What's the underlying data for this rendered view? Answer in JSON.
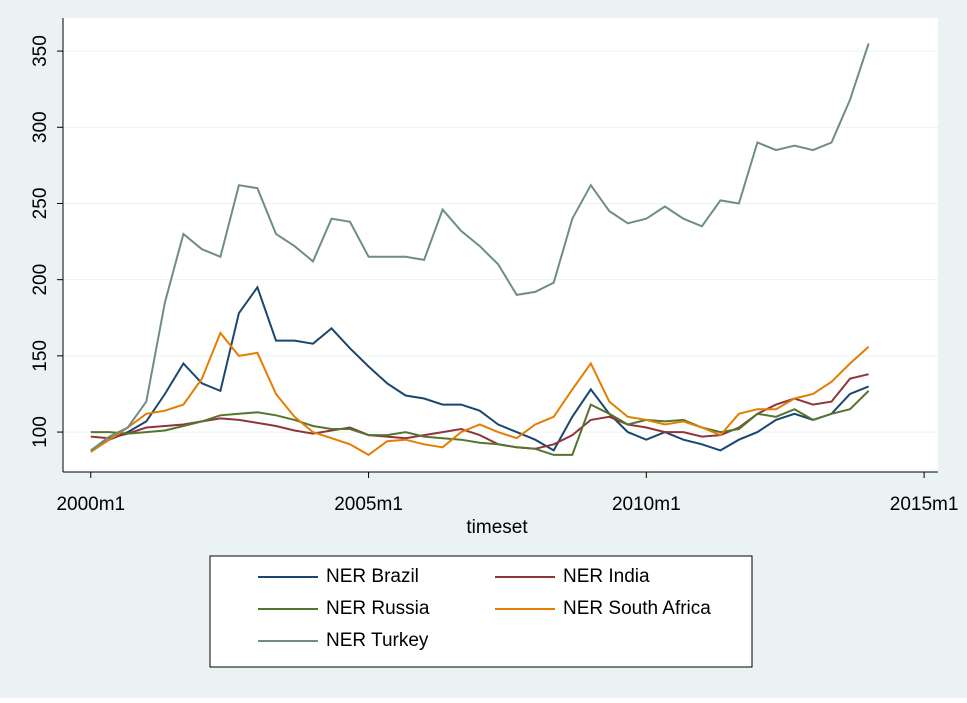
{
  "chart_data": {
    "type": "line",
    "x_label": "timeset",
    "x": [
      "2000m1",
      "2000m5",
      "2000m9",
      "2001m1",
      "2001m5",
      "2001m9",
      "2002m1",
      "2002m5",
      "2002m9",
      "2003m1",
      "2003m5",
      "2003m9",
      "2004m1",
      "2004m5",
      "2004m9",
      "2005m1",
      "2005m5",
      "2005m9",
      "2006m1",
      "2006m5",
      "2006m9",
      "2007m1",
      "2007m5",
      "2007m9",
      "2008m1",
      "2008m5",
      "2008m9",
      "2009m1",
      "2009m5",
      "2009m9",
      "2010m1",
      "2010m5",
      "2010m9",
      "2011m1",
      "2011m5",
      "2011m9",
      "2012m1",
      "2012m5",
      "2012m9",
      "2013m1",
      "2013m5",
      "2013m9",
      "2014m1"
    ],
    "series": [
      {
        "name": "NER Brazil",
        "color": "#1a476f",
        "values": [
          88,
          95,
          100,
          107,
          125,
          145,
          132,
          127,
          178,
          195,
          160,
          160,
          158,
          168,
          155,
          143,
          132,
          124,
          122,
          118,
          118,
          114,
          105,
          100,
          95,
          88,
          110,
          128,
          112,
          100,
          95,
          100,
          95,
          92,
          88,
          95,
          100,
          108,
          112,
          108,
          112,
          125,
          130
        ]
      },
      {
        "name": "NER India",
        "color": "#90353b",
        "values": [
          97,
          96,
          99,
          103,
          104,
          105,
          107,
          109,
          108,
          106,
          104,
          101,
          99,
          101,
          103,
          98,
          97,
          96,
          98,
          100,
          102,
          98,
          92,
          90,
          89,
          92,
          98,
          108,
          110,
          105,
          103,
          100,
          100,
          97,
          98,
          103,
          112,
          118,
          122,
          118,
          120,
          135,
          138
        ]
      },
      {
        "name": "NER Russia",
        "color": "#55752f",
        "values": [
          100,
          100,
          99,
          100,
          101,
          104,
          107,
          111,
          112,
          113,
          111,
          108,
          104,
          102,
          102,
          98,
          98,
          100,
          97,
          96,
          95,
          93,
          92,
          90,
          89,
          85,
          85,
          118,
          112,
          105,
          108,
          107,
          108,
          103,
          100,
          102,
          112,
          110,
          115,
          108,
          112,
          115,
          127
        ]
      },
      {
        "name": "NER South Africa",
        "color": "#e37e00",
        "values": [
          87,
          95,
          103,
          112,
          114,
          118,
          135,
          165,
          150,
          152,
          125,
          110,
          100,
          96,
          92,
          85,
          94,
          95,
          92,
          90,
          100,
          105,
          100,
          96,
          105,
          110,
          128,
          145,
          120,
          110,
          108,
          105,
          107,
          103,
          98,
          112,
          115,
          115,
          122,
          125,
          133,
          145,
          156
        ]
      },
      {
        "name": "NER Turkey",
        "color": "#6e8e84",
        "values": [
          88,
          97,
          103,
          120,
          185,
          230,
          220,
          215,
          262,
          260,
          230,
          222,
          212,
          240,
          238,
          215,
          215,
          215,
          213,
          246,
          232,
          222,
          210,
          190,
          192,
          198,
          240,
          262,
          245,
          237,
          240,
          248,
          240,
          235,
          252,
          250,
          290,
          285,
          288,
          285,
          290,
          318,
          355
        ]
      }
    ],
    "xlim": [
      "1999m7",
      "2015m4"
    ],
    "xticks": [
      "2000m1",
      "2005m1",
      "2010m1",
      "2015m1"
    ],
    "ylim": [
      73.8,
      371.7
    ],
    "yticks": [
      100,
      150,
      200,
      250,
      300,
      350
    ],
    "grid": true
  }
}
